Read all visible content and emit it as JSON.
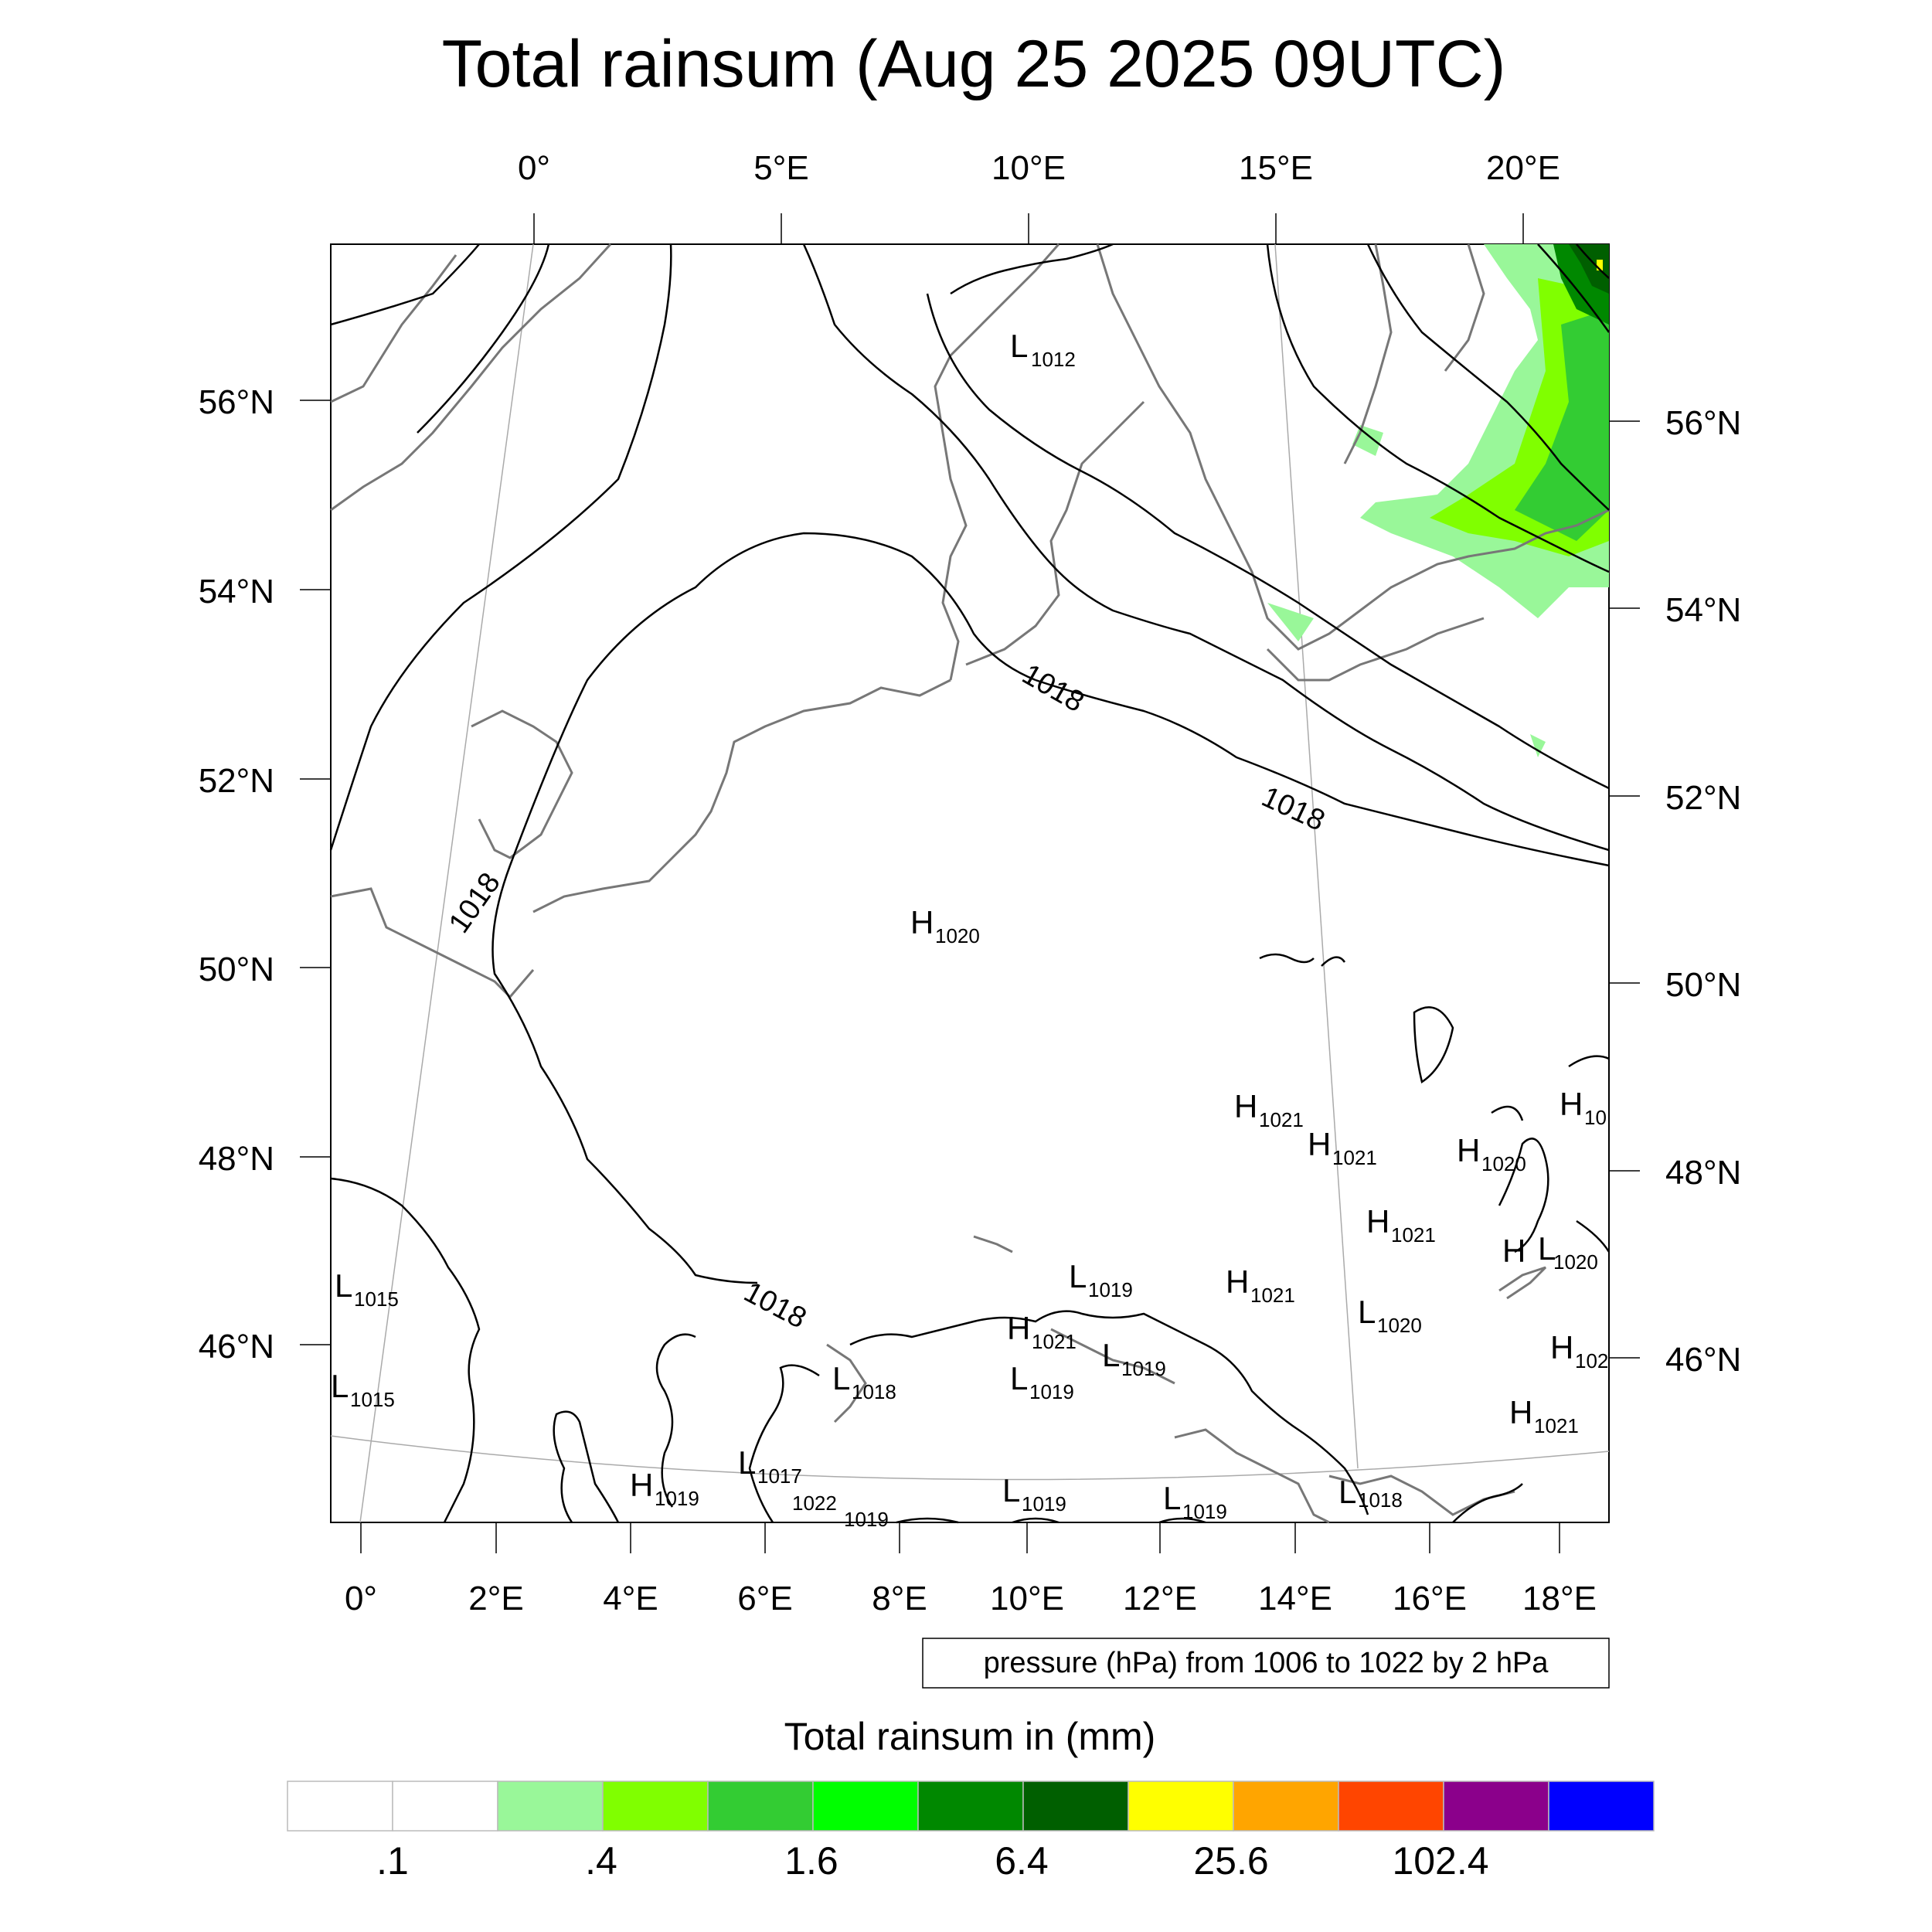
{
  "title": "Total rainsum (Aug 25 2025 09UTC)",
  "top_lon_labels": [
    "0°",
    "5°E",
    "10°E",
    "15°E",
    "20°E"
  ],
  "bottom_lon_labels": [
    "0°",
    "2°E",
    "4°E",
    "6°E",
    "8°E",
    "10°E",
    "12°E",
    "14°E",
    "16°E",
    "18°E"
  ],
  "left_lat_labels": [
    "56°N",
    "54°N",
    "52°N",
    "50°N",
    "48°N",
    "46°N"
  ],
  "right_lat_labels": [
    "56°N",
    "54°N",
    "52°N",
    "50°N",
    "48°N",
    "46°N"
  ],
  "contour_labels": [
    "1018",
    "1018",
    "1018",
    "1018"
  ],
  "pressure_centers": [
    {
      "type": "L",
      "value": "1012"
    },
    {
      "type": "H",
      "value": "1020"
    },
    {
      "type": "H",
      "value": "1021"
    },
    {
      "type": "H",
      "value": "1021"
    },
    {
      "type": "H",
      "value": "10"
    },
    {
      "type": "H",
      "value": "1020"
    },
    {
      "type": "H",
      "value": "1021"
    },
    {
      "type": "H",
      "value": ""
    },
    {
      "type": "L",
      "value": "1020"
    },
    {
      "type": "L",
      "value": "1015"
    },
    {
      "type": "L",
      "value": "1019"
    },
    {
      "type": "H",
      "value": "1021"
    },
    {
      "type": "L",
      "value": "1020"
    },
    {
      "type": "H",
      "value": "102"
    },
    {
      "type": "L",
      "value": "1015"
    },
    {
      "type": "H",
      "value": "1021"
    },
    {
      "type": "L",
      "value": "1018"
    },
    {
      "type": "L",
      "value": "1019"
    },
    {
      "type": "L",
      "value": "1019"
    },
    {
      "type": "H",
      "value": "1021"
    },
    {
      "type": "L",
      "value": "1017"
    },
    {
      "type": "H",
      "value": "1019"
    },
    {
      "type": "",
      "value": "1022"
    },
    {
      "type": "",
      "value": "1019"
    },
    {
      "type": "L",
      "value": "1019"
    },
    {
      "type": "L",
      "value": "1019"
    },
    {
      "type": "L",
      "value": "1018"
    }
  ],
  "info_box": "pressure (hPa) from 1006 to 1022 by 2 hPa",
  "colorbar": {
    "title": "Total rainsum in (mm)",
    "colors": [
      "#ffffff",
      "#ffffff",
      "#99f799",
      "#80ff00",
      "#33cc33",
      "#00ff00",
      "#008800",
      "#005f00",
      "#ffff00",
      "#ffa500",
      "#ff4500",
      "#8b008b",
      "#0000ff"
    ],
    "tick_labels": [
      ".1",
      ".4",
      "1.6",
      "6.4",
      "25.6",
      "102.4"
    ]
  }
}
